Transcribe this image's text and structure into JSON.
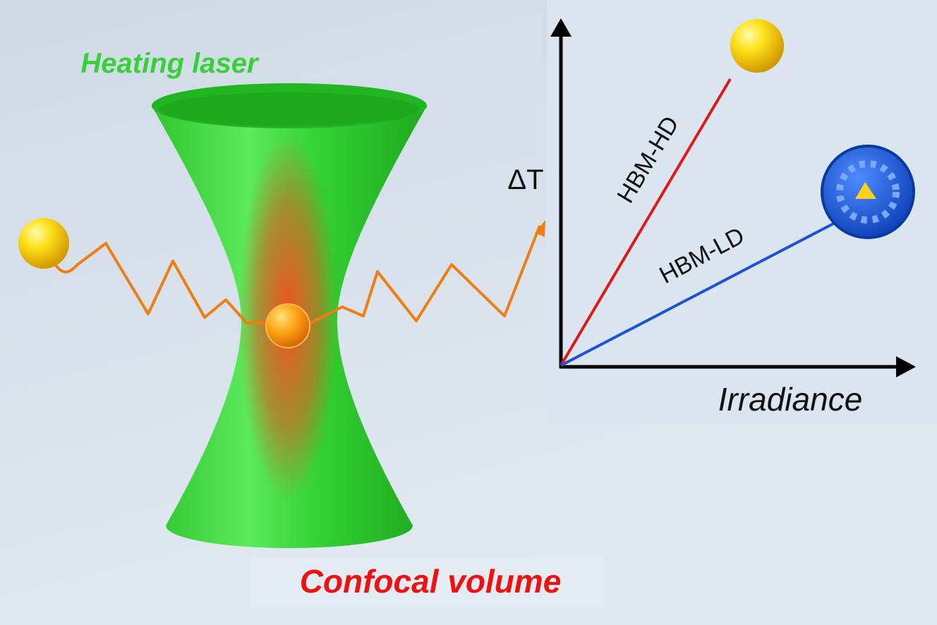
{
  "heating_label": "Heating laser",
  "confocal_label": "Confocal volume",
  "plot": {
    "y_axis_label": "ΔT",
    "x_axis_label": "Irradiance",
    "lines": [
      {
        "label": "HBM-HD"
      },
      {
        "label": "HBM-LD"
      }
    ]
  }
}
